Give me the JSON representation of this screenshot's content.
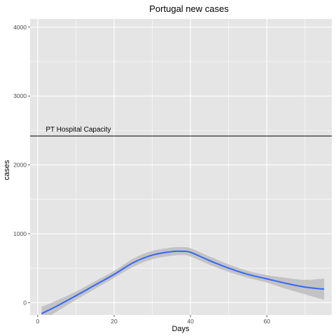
{
  "chart_data": {
    "type": "line",
    "title": "Portugal new cases",
    "xlabel": "Days",
    "ylabel": "cases",
    "xlim": [
      -2,
      77
    ],
    "ylim": [
      -180,
      4120
    ],
    "x_ticks": [
      0,
      20,
      40,
      60
    ],
    "y_ticks": [
      0,
      1000,
      2000,
      3000,
      4000
    ],
    "grid": true,
    "legend": "none",
    "series": [
      {
        "x": [
          1,
          5,
          10,
          15,
          20,
          25,
          30,
          35,
          38,
          40,
          45,
          50,
          55,
          60,
          65,
          70,
          75
        ],
        "y": [
          -160,
          -50,
          100,
          255,
          410,
          580,
          690,
          740,
          745,
          730,
          610,
          500,
          410,
          345,
          280,
          225,
          195
        ],
        "ci_lower": [
          -260,
          -130,
          40,
          200,
          360,
          520,
          630,
          680,
          690,
          670,
          550,
          445,
          360,
          290,
          200,
          120,
          40
        ],
        "ci_upper": [
          -60,
          30,
          160,
          310,
          460,
          640,
          750,
          800,
          805,
          790,
          670,
          555,
          460,
          400,
          360,
          330,
          350
        ]
      }
    ],
    "reference_line": {
      "y": 2420,
      "label": "PT Hospital Capacity",
      "label_x": 1
    },
    "colors": {
      "panel_background": "#e5e5e5",
      "grid": "#ffffff",
      "line": "#3366ff",
      "ribbon": "#bdbdbd",
      "reference_line": "#000000"
    }
  }
}
